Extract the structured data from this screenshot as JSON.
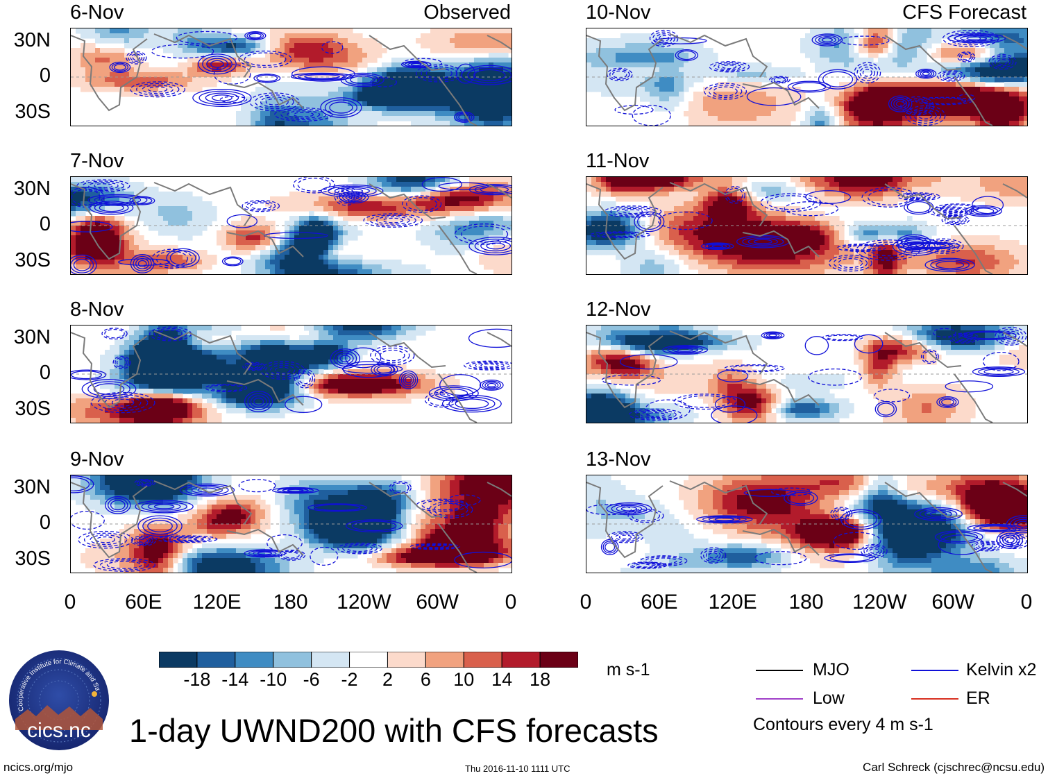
{
  "chart_data": {
    "type": "heatmap",
    "title": "1-day UWND200 with CFS forecasts",
    "variable": "UWND200",
    "units": "m s-1",
    "colorbar": {
      "levels": [
        -18,
        -14,
        -10,
        -6,
        -2,
        2,
        6,
        10,
        14,
        18
      ],
      "level_labels": [
        "-18",
        "-14",
        "-10",
        "-6",
        "-2",
        "2",
        "6",
        "10",
        "14",
        "18"
      ],
      "colors": [
        "#0b3a63",
        "#1f5f9e",
        "#3f8cc3",
        "#90c1de",
        "#d4e6f3",
        "#ffffff",
        "#fcdacb",
        "#f1a27f",
        "#d9604c",
        "#b21b2b",
        "#6b0016"
      ]
    },
    "latitude_ticks": [
      "30N",
      "0",
      "30S"
    ],
    "longitude_ticks": [
      "0",
      "60E",
      "120E",
      "180",
      "120W",
      "60W",
      "0"
    ],
    "lat_range": [
      -40,
      40
    ],
    "lon_range": [
      0,
      360
    ],
    "columns": [
      {
        "label": "Observed",
        "panels": [
          "6-Nov",
          "7-Nov",
          "8-Nov",
          "9-Nov"
        ]
      },
      {
        "label": "CFS Forecast",
        "panels": [
          "10-Nov",
          "11-Nov",
          "12-Nov",
          "13-Nov"
        ]
      }
    ],
    "contour_legend": [
      {
        "name": "MJO",
        "color": "#000000"
      },
      {
        "name": "Kelvin x2",
        "color": "#1010d8"
      },
      {
        "name": "Low",
        "color": "#a040c8"
      },
      {
        "name": "ER",
        "color": "#d83020"
      }
    ],
    "contour_interval_text": "Contours every 4 m s-1"
  },
  "logo": {
    "text": "cics.nc",
    "ring_text": "Cooperative Institute for Climate and Satellites"
  },
  "footer": {
    "left": "ncics.org/mjo",
    "center": "Thu 2016-11-10 1111 UTC",
    "right": "Carl Schreck (cjschrec@ncsu.edu)"
  }
}
